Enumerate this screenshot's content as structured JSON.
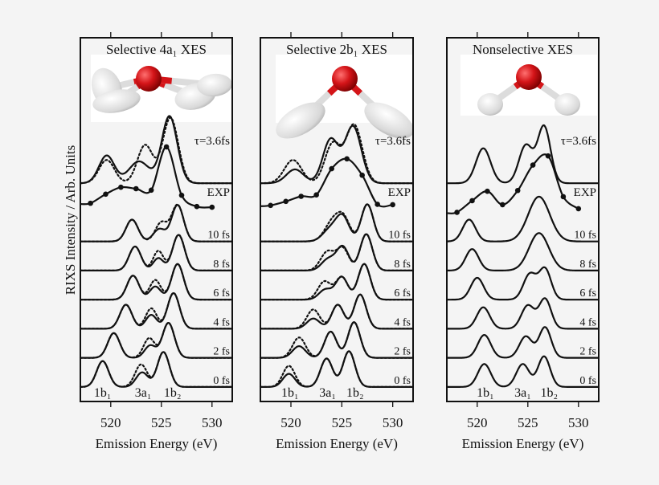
{
  "figure": {
    "ylabel": "RIXS Intensity / Arb. Units",
    "colors": {
      "background": "#f4f4f4",
      "line": "#111111",
      "oxygen": "#d41418",
      "hydrogen": "#e6e6e6"
    }
  },
  "chart_data": [
    {
      "type": "line",
      "title": "Selective 4a₁ XES",
      "xlabel": "Emission Energy (eV)",
      "xlim": [
        517,
        532
      ],
      "xticks": [
        520,
        525,
        530
      ],
      "ylim": [
        0,
        100
      ],
      "peak_labels": [
        {
          "text": "1b₁",
          "x": 519.2
        },
        {
          "text": "3a₁",
          "x": 523.2
        },
        {
          "text": "1b₂",
          "x": 526.1
        }
      ],
      "series": [
        {
          "label": "0 fs",
          "offset": 4,
          "solid": [
            [
              519.2,
              7.1,
              1.4
            ],
            [
              523.1,
              4.0,
              1.4
            ],
            [
              525.2,
              9.6,
              1.4
            ]
          ],
          "dotted": [
            [
              519.2,
              7.1,
              1.4
            ],
            [
              523.0,
              6.2,
              1.4
            ],
            [
              525.2,
              9.6,
              1.4
            ]
          ]
        },
        {
          "label": "2 fs",
          "offset": 12,
          "solid": [
            [
              520.3,
              6.8,
              1.4
            ],
            [
              523.9,
              3.4,
              1.3
            ],
            [
              525.7,
              9.6,
              1.4
            ]
          ],
          "dotted": [
            [
              520.3,
              6.8,
              1.4
            ],
            [
              523.8,
              5.4,
              1.3
            ],
            [
              525.7,
              9.6,
              1.4
            ]
          ]
        },
        {
          "label": "4 fs",
          "offset": 20,
          "solid": [
            [
              521.5,
              6.6,
              1.4
            ],
            [
              524.0,
              3.8,
              1.3
            ],
            [
              526.2,
              9.8,
              1.4
            ]
          ],
          "dotted": [
            [
              521.5,
              6.6,
              1.4
            ],
            [
              524.0,
              5.6,
              1.3
            ],
            [
              526.2,
              9.8,
              1.4
            ]
          ]
        },
        {
          "label": "6 fs",
          "offset": 28,
          "solid": [
            [
              522.2,
              6.6,
              1.4
            ],
            [
              524.4,
              3.6,
              1.3
            ],
            [
              526.6,
              9.8,
              1.4
            ]
          ],
          "dotted": [
            [
              522.2,
              6.6,
              1.4
            ],
            [
              524.4,
              5.4,
              1.3
            ],
            [
              526.6,
              9.8,
              1.4
            ]
          ]
        },
        {
          "label": "8 fs",
          "offset": 36,
          "solid": [
            [
              522.4,
              6.6,
              1.4
            ],
            [
              524.7,
              3.4,
              1.2
            ],
            [
              526.7,
              9.8,
              1.4
            ]
          ],
          "dotted": [
            [
              522.4,
              6.6,
              1.4
            ],
            [
              524.7,
              5.4,
              1.2
            ],
            [
              526.7,
              9.8,
              1.4
            ]
          ]
        },
        {
          "label": "10 fs",
          "offset": 44,
          "solid": [
            [
              522.1,
              6.0,
              1.4
            ],
            [
              524.8,
              3.4,
              1.4
            ],
            [
              526.6,
              10.0,
              1.4
            ]
          ],
          "dotted": [
            [
              522.1,
              6.0,
              1.4
            ],
            [
              525.0,
              5.2,
              1.4
            ],
            [
              526.6,
              10.0,
              1.4
            ]
          ]
        },
        {
          "label": "τ=3.6fs",
          "offset": 60,
          "solid": [
            [
              519.6,
              7.6,
              1.8
            ],
            [
              522.8,
              6.0,
              2.4
            ],
            [
              525.8,
              18.4,
              1.8
            ]
          ],
          "dotted": [
            [
              519.6,
              6.4,
              1.8
            ],
            [
              523.4,
              10.5,
              1.8
            ],
            [
              525.9,
              18.0,
              1.8
            ]
          ]
        }
      ],
      "experiment": {
        "label": "EXP",
        "points": [
          [
            518.0,
            54.5
          ],
          [
            519.5,
            57.0
          ],
          [
            521.0,
            58.9
          ],
          [
            522.5,
            58.5
          ],
          [
            524.0,
            58.1
          ],
          [
            525.5,
            70.0
          ],
          [
            527.0,
            56.7
          ],
          [
            528.5,
            53.6
          ],
          [
            530.0,
            53.4
          ]
        ]
      }
    },
    {
      "type": "line",
      "title": "Selective 2b₁ XES",
      "xlabel": "Emission Energy (eV)",
      "xlim": [
        517,
        532
      ],
      "xticks": [
        520,
        525,
        530
      ],
      "ylim": [
        0,
        100
      ],
      "peak_labels": [
        {
          "text": "1b₁",
          "x": 519.9
        },
        {
          "text": "3a₁",
          "x": 523.6
        },
        {
          "text": "1b₂",
          "x": 526.3
        }
      ],
      "series": [
        {
          "label": "0 fs",
          "offset": 4,
          "solid": [
            [
              519.8,
              3.6,
              1.4
            ],
            [
              523.5,
              7.8,
              1.4
            ],
            [
              525.7,
              9.8,
              1.4
            ]
          ],
          "dotted": [
            [
              519.8,
              5.8,
              1.4
            ],
            [
              523.5,
              7.8,
              1.4
            ],
            [
              525.7,
              9.8,
              1.4
            ]
          ]
        },
        {
          "label": "2 fs",
          "offset": 12,
          "solid": [
            [
              520.8,
              3.2,
              1.5
            ],
            [
              523.9,
              7.2,
              1.4
            ],
            [
              526.2,
              9.8,
              1.4
            ]
          ],
          "dotted": [
            [
              520.8,
              5.6,
              1.5
            ],
            [
              523.9,
              7.2,
              1.4
            ],
            [
              526.2,
              9.8,
              1.4
            ]
          ]
        },
        {
          "label": "4 fs",
          "offset": 20,
          "solid": [
            [
              522.2,
              2.8,
              1.5
            ],
            [
              524.6,
              6.6,
              1.4
            ],
            [
              526.8,
              9.4,
              1.4
            ]
          ],
          "dotted": [
            [
              522.2,
              5.3,
              1.5
            ],
            [
              524.6,
              6.6,
              1.4
            ],
            [
              526.8,
              9.4,
              1.4
            ]
          ]
        },
        {
          "label": "6 fs",
          "offset": 28,
          "solid": [
            [
              523.4,
              2.8,
              1.5
            ],
            [
              525.0,
              6.2,
              1.4
            ],
            [
              527.2,
              9.8,
              1.4
            ]
          ],
          "dotted": [
            [
              523.3,
              5.0,
              1.5
            ],
            [
              525.0,
              6.2,
              1.4
            ],
            [
              527.2,
              9.8,
              1.4
            ]
          ]
        },
        {
          "label": "8 fs",
          "offset": 36,
          "solid": [
            [
              523.7,
              3.2,
              1.6
            ],
            [
              525.1,
              6.4,
              1.4
            ],
            [
              527.4,
              10.0,
              1.4
            ]
          ],
          "dotted": [
            [
              523.6,
              5.2,
              1.6
            ],
            [
              525.1,
              6.0,
              1.4
            ],
            [
              527.4,
              10.0,
              1.4
            ]
          ]
        },
        {
          "label": "10 fs",
          "offset": 44,
          "solid": [
            [
              523.9,
              3.4,
              1.8
            ],
            [
              525.1,
              6.4,
              1.5
            ],
            [
              527.5,
              10.2,
              1.4
            ]
          ],
          "dotted": [
            [
              524.1,
              5.4,
              1.8
            ],
            [
              525.2,
              5.6,
              1.5
            ],
            [
              527.5,
              10.2,
              1.4
            ]
          ]
        },
        {
          "label": "τ=3.6fs",
          "offset": 60,
          "solid": [
            [
              520.4,
              3.8,
              2.0
            ],
            [
              523.9,
              12.0,
              1.8
            ],
            [
              526.1,
              15.6,
              1.9
            ]
          ],
          "dotted": [
            [
              520.2,
              6.4,
              2.0
            ],
            [
              524.1,
              10.8,
              1.8
            ],
            [
              526.2,
              16.0,
              1.9
            ]
          ]
        }
      ],
      "experiment": {
        "label": "EXP",
        "points": [
          [
            518.0,
            53.9
          ],
          [
            519.5,
            55.0
          ],
          [
            521.0,
            56.4
          ],
          [
            522.5,
            56.8
          ],
          [
            524.0,
            64.0
          ],
          [
            525.5,
            66.7
          ],
          [
            527.0,
            62.2
          ],
          [
            528.5,
            54.2
          ],
          [
            530.0,
            54.1
          ]
        ]
      }
    },
    {
      "type": "line",
      "title": "Nonselective XES",
      "xlabel": "Emission Energy (eV)",
      "xlim": [
        517,
        532
      ],
      "xticks": [
        520,
        525,
        530
      ],
      "ylim": [
        0,
        100
      ],
      "peak_labels": [
        {
          "text": "1b₁",
          "x": 520.8
        },
        {
          "text": "3a₁",
          "x": 524.5
        },
        {
          "text": "1b₂",
          "x": 527.1
        }
      ],
      "series": [
        {
          "label": "0 fs",
          "offset": 4,
          "solid": [
            [
              520.7,
              6.3,
              1.5
            ],
            [
              524.5,
              6.3,
              1.5
            ],
            [
              526.6,
              8.4,
              1.4
            ]
          ]
        },
        {
          "label": "2 fs",
          "offset": 12,
          "solid": [
            [
              520.7,
              6.3,
              1.5
            ],
            [
              524.8,
              5.9,
              1.5
            ],
            [
              526.7,
              8.4,
              1.4
            ]
          ]
        },
        {
          "label": "4 fs",
          "offset": 20,
          "solid": [
            [
              520.6,
              5.9,
              1.5
            ],
            [
              525.0,
              6.4,
              1.5
            ],
            [
              526.7,
              8.2,
              1.4
            ]
          ]
        },
        {
          "label": "6 fs",
          "offset": 28,
          "solid": [
            [
              520.0,
              6.0,
              1.5
            ],
            [
              525.2,
              7.0,
              1.5
            ],
            [
              526.7,
              8.4,
              1.4
            ]
          ]
        },
        {
          "label": "8 fs",
          "offset": 36,
          "solid": [
            [
              519.5,
              5.9,
              1.5
            ],
            [
              526.1,
              10.3,
              2.3
            ]
          ]
        },
        {
          "label": "10 fs",
          "offset": 44,
          "solid": [
            [
              519.2,
              6.0,
              1.5
            ],
            [
              526.1,
              12.3,
              2.5
            ]
          ]
        },
        {
          "label": "τ=3.6fs",
          "offset": 60,
          "solid": [
            [
              520.6,
              9.6,
              1.7
            ],
            [
              524.8,
              10.4,
              1.6
            ],
            [
              526.6,
              15.6,
              1.5
            ]
          ]
        }
      ],
      "experiment": {
        "label": "EXP",
        "points": [
          [
            518.0,
            52.0
          ],
          [
            519.5,
            55.2
          ],
          [
            521.0,
            57.8
          ],
          [
            522.5,
            54.1
          ],
          [
            524.0,
            58.0
          ],
          [
            525.5,
            65.0
          ],
          [
            527.0,
            67.5
          ],
          [
            528.5,
            56.3
          ],
          [
            530.0,
            53.0
          ]
        ]
      }
    }
  ]
}
